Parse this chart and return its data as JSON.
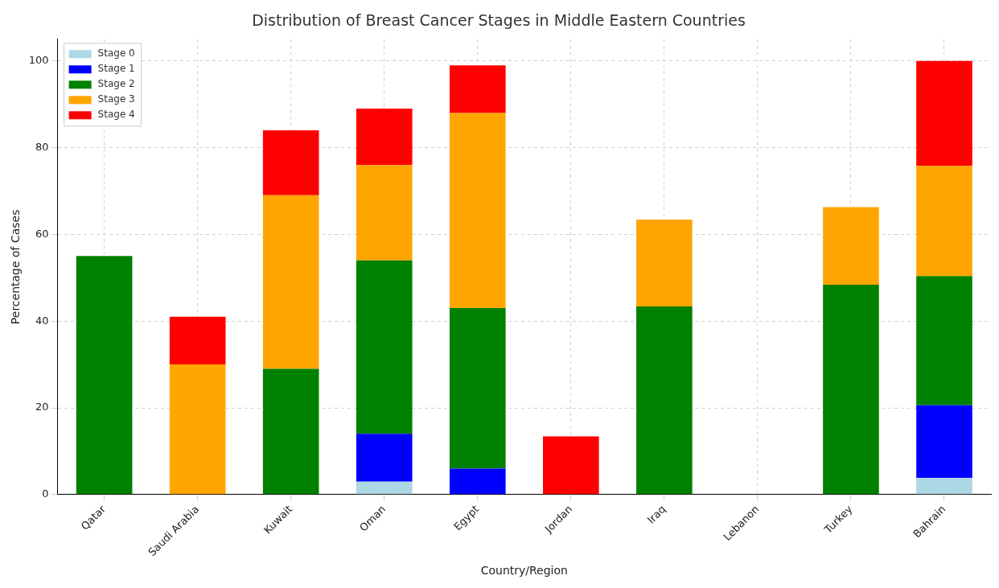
{
  "chart_data": {
    "type": "bar",
    "title": "Distribution of Breast Cancer Stages in Middle Eastern Countries",
    "xlabel": "Country/Region",
    "ylabel": "Percentage of Cases",
    "categories": [
      "Qatar",
      "Saudi Arabia",
      "Kuwait",
      "Oman",
      "Egypt",
      "Jordan",
      "Iraq",
      "Lebanon",
      "Turkey",
      "Bahrain"
    ],
    "stacked": true,
    "series": [
      {
        "name": "Stage 0",
        "color": "#add8e6",
        "values": [
          0,
          0,
          0,
          3,
          0,
          0,
          0,
          0,
          0,
          3.8
        ]
      },
      {
        "name": "Stage 1",
        "color": "#0000ff",
        "values": [
          0,
          0,
          0,
          11,
          6,
          0,
          0,
          0,
          0,
          16.8
        ]
      },
      {
        "name": "Stage 2",
        "color": "#008000",
        "values": [
          55,
          0,
          29,
          40,
          37,
          0,
          43.4,
          0,
          48.4,
          29.8
        ]
      },
      {
        "name": "Stage 3",
        "color": "#ffa500",
        "values": [
          0,
          30,
          40,
          22,
          45,
          0,
          20,
          0,
          17.9,
          25.4
        ]
      },
      {
        "name": "Stage 4",
        "color": "#ff0000",
        "values": [
          0,
          11,
          15,
          13,
          11,
          13.4,
          0,
          0,
          0,
          24.2
        ]
      }
    ],
    "ylim": [
      0,
      105
    ],
    "yticks": [
      0,
      20,
      40,
      60,
      80,
      100
    ],
    "grid": true,
    "legend": "top left"
  }
}
